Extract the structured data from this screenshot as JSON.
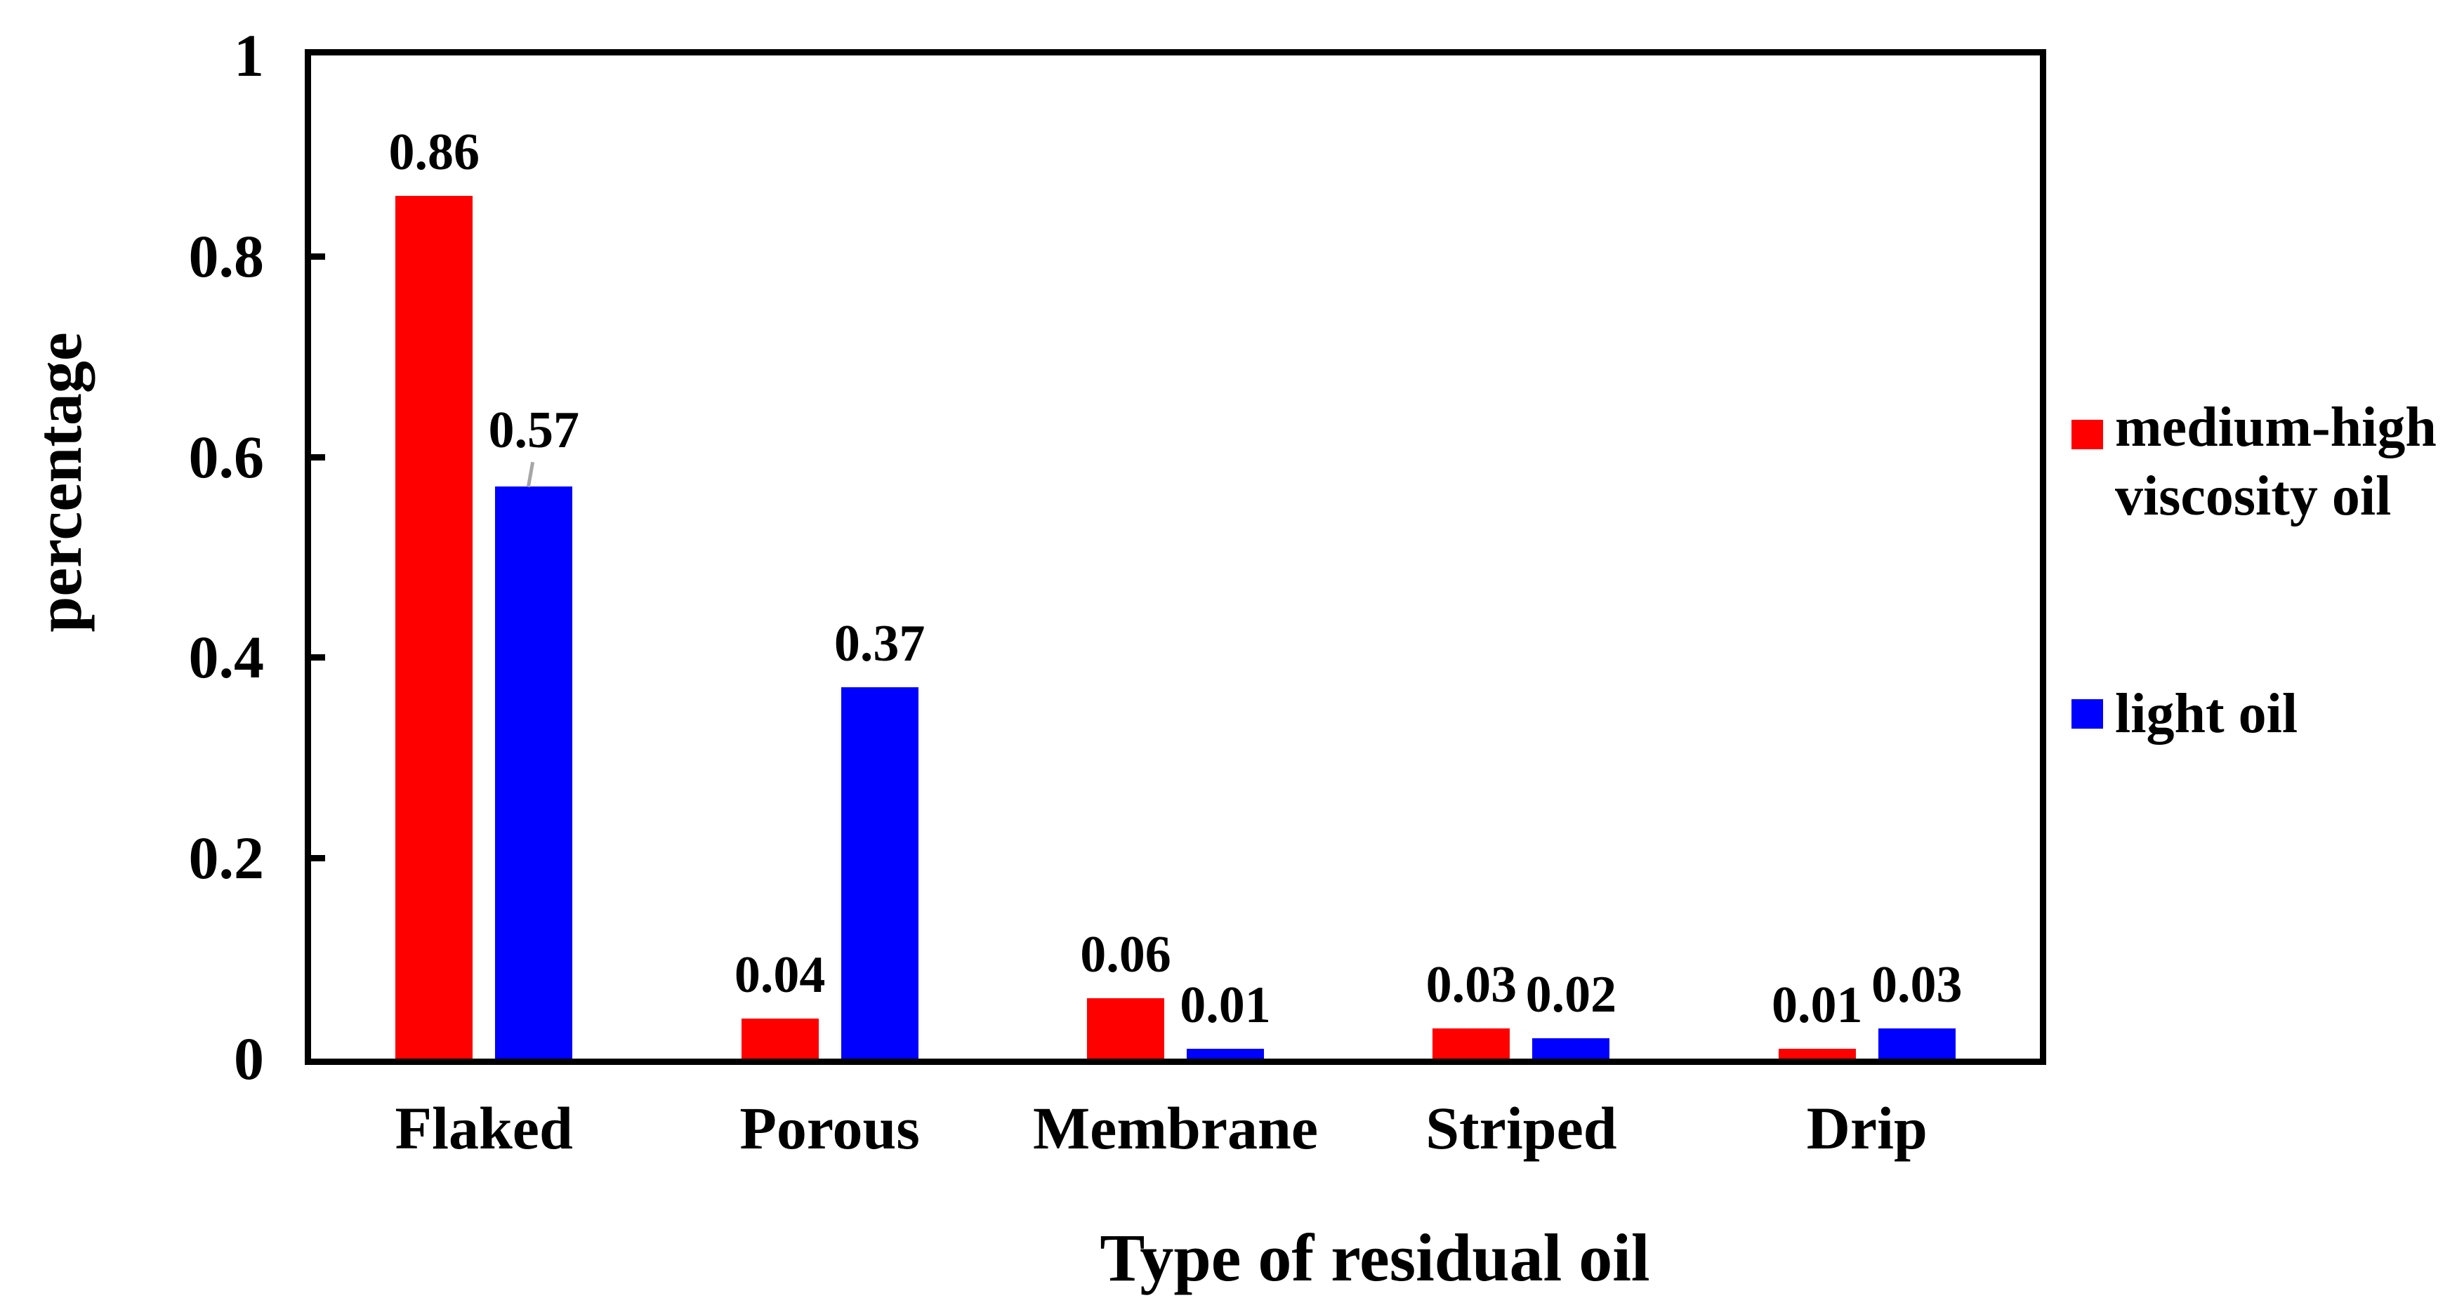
{
  "chart_data": {
    "type": "bar",
    "title": "",
    "xlabel": "Type of residual oil",
    "ylabel": "percentage",
    "categories": [
      "Flaked",
      "Porous",
      "Membrane",
      "Striped",
      "Drip"
    ],
    "series": [
      {
        "name": "medium-high viscosity oil",
        "legend_lines": [
          "medium-high",
          "viscosity oil"
        ],
        "color": "#ff0000",
        "values": [
          0.86,
          0.04,
          0.06,
          0.03,
          0.01
        ],
        "value_labels": [
          "0.86",
          "0.04",
          "0.06",
          "0.03",
          "0.01"
        ]
      },
      {
        "name": "light oil",
        "legend_lines": [
          "light oil"
        ],
        "color": "#0000ff",
        "values": [
          0.57,
          0.37,
          0.01,
          0.02,
          0.03
        ],
        "value_labels": [
          "0.57",
          "0.37",
          "0.01",
          "0.02",
          "0.03"
        ]
      }
    ],
    "ylim": [
      0,
      1
    ],
    "yticks": [
      0,
      0.2,
      0.4,
      0.6,
      0.8,
      1
    ],
    "ytick_labels": [
      "0",
      "0.2",
      "0.4",
      "0.6",
      "0.8",
      "1"
    ],
    "grid": false,
    "legend_position": "right",
    "value_labels_shown": true,
    "moved_label": {
      "series_index": 1,
      "category_index": 0,
      "leader_line": true
    }
  },
  "colors": {
    "bar_red": "#ff0000",
    "bar_blue": "#0000ff",
    "axis": "#000000",
    "text": "#000000",
    "leader_line": "#a6a6a6",
    "background": "#ffffff"
  }
}
